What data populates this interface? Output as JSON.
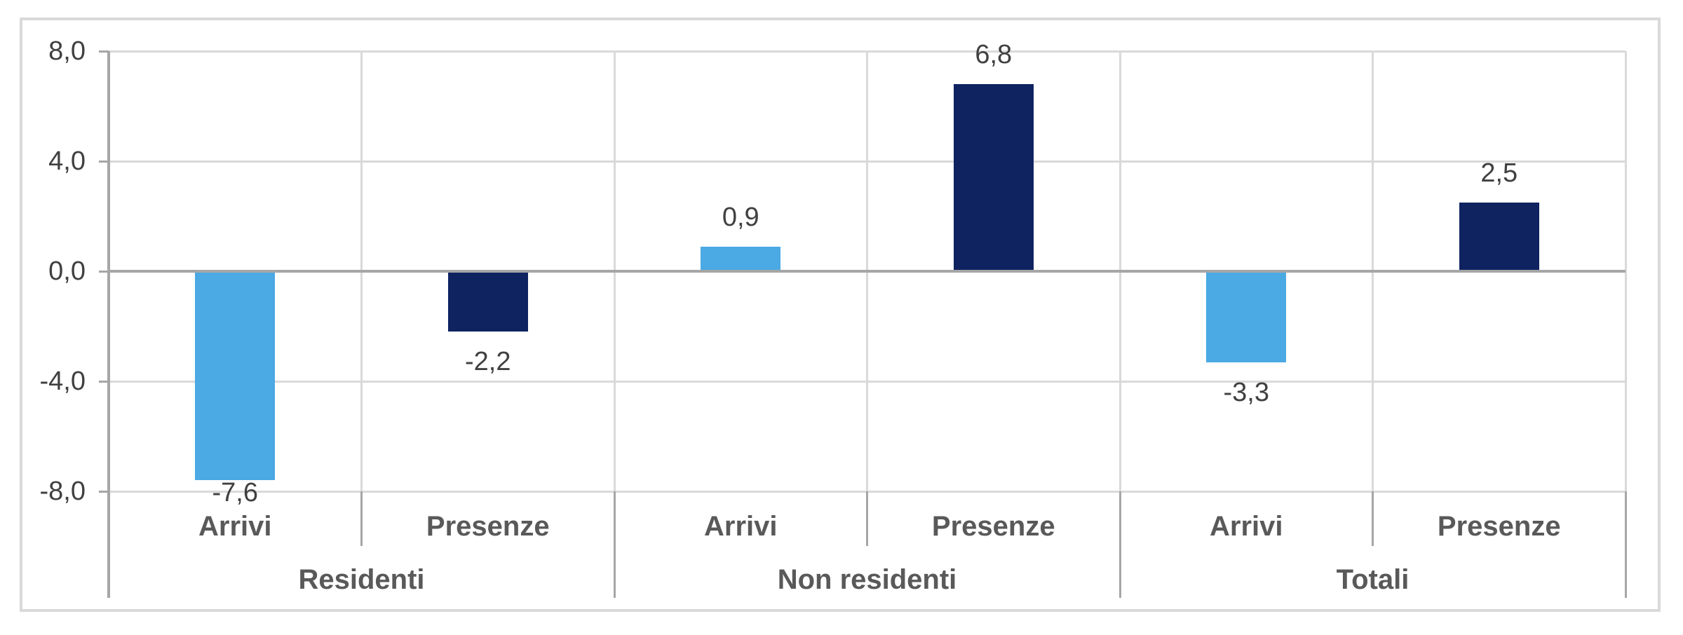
{
  "chart_data": {
    "type": "bar",
    "title": "",
    "legend": "none",
    "grid": true,
    "y_axis": {
      "min": -8.0,
      "max": 8.0,
      "tick_step": 4.0,
      "ticks": [
        {
          "value": 8.0,
          "label": "8,0"
        },
        {
          "value": 4.0,
          "label": "4,0"
        },
        {
          "value": 0.0,
          "label": "0,0"
        },
        {
          "value": -4.0,
          "label": "-4,0"
        },
        {
          "value": -8.0,
          "label": "-8,0"
        }
      ]
    },
    "groups": [
      {
        "label": "Residenti",
        "bars": [
          {
            "category": "Arrivi",
            "value": -7.6,
            "value_label": "-7,6"
          },
          {
            "category": "Presenze",
            "value": -2.2,
            "value_label": "-2,2"
          }
        ]
      },
      {
        "label": "Non residenti",
        "bars": [
          {
            "category": "Arrivi",
            "value": 0.9,
            "value_label": "0,9"
          },
          {
            "category": "Presenze",
            "value": 6.8,
            "value_label": "6,8"
          }
        ]
      },
      {
        "label": "Totali",
        "bars": [
          {
            "category": "Arrivi",
            "value": -3.3,
            "value_label": "-3,3"
          },
          {
            "category": "Presenze",
            "value": 2.5,
            "value_label": "2,5"
          }
        ]
      }
    ],
    "colors": {
      "arrivi_bar": "#4BA9E3",
      "presenze_bar": "#0F2361",
      "gridline": "#D9D9D9",
      "zero_line": "#A6A6A6",
      "axis_line": "#A6A6A6",
      "frame_border": "#D9D9D9",
      "tick_text": "#404040",
      "category_text": "#595959"
    }
  }
}
